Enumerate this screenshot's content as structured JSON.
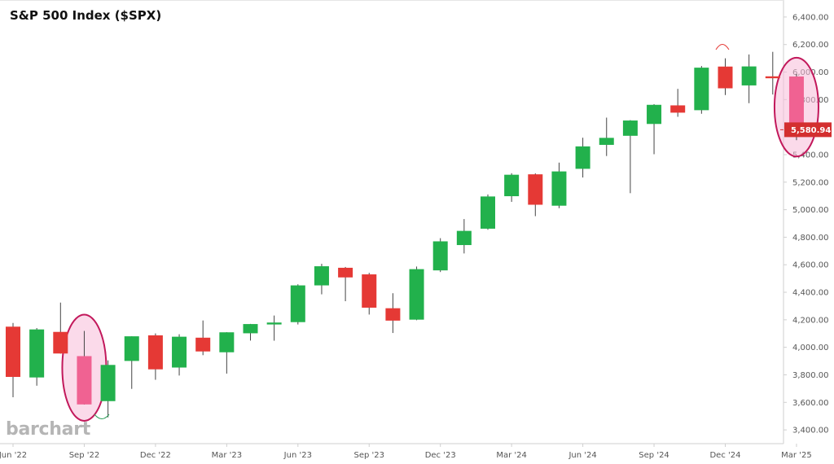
{
  "title": "S&P 500 Index ($SPX)",
  "brand": "barchart",
  "colors": {
    "up": "#22b14c",
    "down": "#e53935",
    "highlight": "#c2185b",
    "highlight_fill": "#f8bbd9",
    "last_price_bg": "#d32f2f"
  },
  "chart_data": {
    "type": "candlestick",
    "interval": "monthly",
    "title": "S&P 500 Index ($SPX)",
    "y_ticks": [
      "3,400.00",
      "3,600.00",
      "3,800.00",
      "4,000.00",
      "4,200.00",
      "4,400.00",
      "4,600.00",
      "4,800.00",
      "5,000.00",
      "5,200.00",
      "5,400.00",
      "5,600.00",
      "5,800.00",
      "6,000.00",
      "6,200.00",
      "6,400.00"
    ],
    "ylim": [
      3300,
      6500
    ],
    "x_ticks": [
      {
        "label": "Jun '22",
        "index": 0
      },
      {
        "label": "Sep '22",
        "index": 3
      },
      {
        "label": "Dec '22",
        "index": 6
      },
      {
        "label": "Mar '23",
        "index": 9
      },
      {
        "label": "Jun '23",
        "index": 12
      },
      {
        "label": "Sep '23",
        "index": 15
      },
      {
        "label": "Dec '23",
        "index": 18
      },
      {
        "label": "Mar '24",
        "index": 21
      },
      {
        "label": "Jun '24",
        "index": 24
      },
      {
        "label": "Sep '24",
        "index": 27
      },
      {
        "label": "Dec '24",
        "index": 30
      },
      {
        "label": "Mar '25",
        "index": 33
      }
    ],
    "last_price": "5,580.94",
    "last_value": 5580.94,
    "candles": [
      {
        "month": "Jun 2022",
        "o": 4150,
        "h": 4177,
        "l": 3637,
        "c": 3785
      },
      {
        "month": "Jul 2022",
        "o": 3781,
        "h": 4140,
        "l": 3721,
        "c": 4130
      },
      {
        "month": "Aug 2022",
        "o": 4112,
        "h": 4325,
        "l": 3954,
        "c": 3955
      },
      {
        "month": "Sep 2022",
        "o": 3936,
        "h": 4119,
        "l": 3584,
        "c": 3585
      },
      {
        "month": "Oct 2022",
        "o": 3609,
        "h": 3905,
        "l": 3491,
        "c": 3872
      },
      {
        "month": "Nov 2022",
        "o": 3901,
        "h": 4080,
        "l": 3698,
        "c": 4080
      },
      {
        "month": "Dec 2022",
        "o": 4087,
        "h": 4101,
        "l": 3764,
        "c": 3840
      },
      {
        "month": "Jan 2023",
        "o": 3853,
        "h": 4095,
        "l": 3795,
        "c": 4077
      },
      {
        "month": "Feb 2023",
        "o": 4070,
        "h": 4195,
        "l": 3943,
        "c": 3970
      },
      {
        "month": "Mar 2023",
        "o": 3964,
        "h": 4110,
        "l": 3809,
        "c": 4109
      },
      {
        "month": "Apr 2023",
        "o": 4102,
        "h": 4170,
        "l": 4049,
        "c": 4169
      },
      {
        "month": "May 2023",
        "o": 4166,
        "h": 4231,
        "l": 4048,
        "c": 4180
      },
      {
        "month": "Jun 2023",
        "o": 4183,
        "h": 4458,
        "l": 4166,
        "c": 4450
      },
      {
        "month": "Jul 2023",
        "o": 4450,
        "h": 4607,
        "l": 4385,
        "c": 4589
      },
      {
        "month": "Aug 2023",
        "o": 4578,
        "h": 4584,
        "l": 4335,
        "c": 4508
      },
      {
        "month": "Sep 2023",
        "o": 4530,
        "h": 4541,
        "l": 4238,
        "c": 4288
      },
      {
        "month": "Oct 2023",
        "o": 4284,
        "h": 4393,
        "l": 4104,
        "c": 4194
      },
      {
        "month": "Nov 2023",
        "o": 4201,
        "h": 4587,
        "l": 4197,
        "c": 4568
      },
      {
        "month": "Dec 2023",
        "o": 4559,
        "h": 4793,
        "l": 4547,
        "c": 4770
      },
      {
        "month": "Jan 2024",
        "o": 4743,
        "h": 4932,
        "l": 4682,
        "c": 4846
      },
      {
        "month": "Feb 2024",
        "o": 4862,
        "h": 5111,
        "l": 4854,
        "c": 5096
      },
      {
        "month": "Mar 2024",
        "o": 5098,
        "h": 5265,
        "l": 5057,
        "c": 5254
      },
      {
        "month": "Apr 2024",
        "o": 5257,
        "h": 5264,
        "l": 4953,
        "c": 5036
      },
      {
        "month": "May 2024",
        "o": 5029,
        "h": 5342,
        "l": 5011,
        "c": 5278
      },
      {
        "month": "Jun 2024",
        "o": 5297,
        "h": 5523,
        "l": 5234,
        "c": 5460
      },
      {
        "month": "Jul 2024",
        "o": 5471,
        "h": 5669,
        "l": 5390,
        "c": 5522
      },
      {
        "month": "Aug 2024",
        "o": 5537,
        "h": 5651,
        "l": 5120,
        "c": 5648
      },
      {
        "month": "Sep 2024",
        "o": 5623,
        "h": 5767,
        "l": 5403,
        "c": 5762
      },
      {
        "month": "Oct 2024",
        "o": 5758,
        "h": 5878,
        "l": 5675,
        "c": 5705
      },
      {
        "month": "Nov 2024",
        "o": 5723,
        "h": 6044,
        "l": 5697,
        "c": 6032
      },
      {
        "month": "Dec 2024",
        "o": 6040,
        "h": 6100,
        "l": 5833,
        "c": 5882
      },
      {
        "month": "Jan 2025",
        "o": 5903,
        "h": 6128,
        "l": 5774,
        "c": 6041
      },
      {
        "month": "Feb 2025",
        "o": 5969,
        "h": 6147,
        "l": 5837,
        "c": 5955
      },
      {
        "month": "Mar 2025",
        "o": 5968,
        "h": 5986,
        "l": 5505,
        "c": 5581
      }
    ],
    "highlighted": [
      "Sep 2022",
      "Mar 2025"
    ]
  }
}
